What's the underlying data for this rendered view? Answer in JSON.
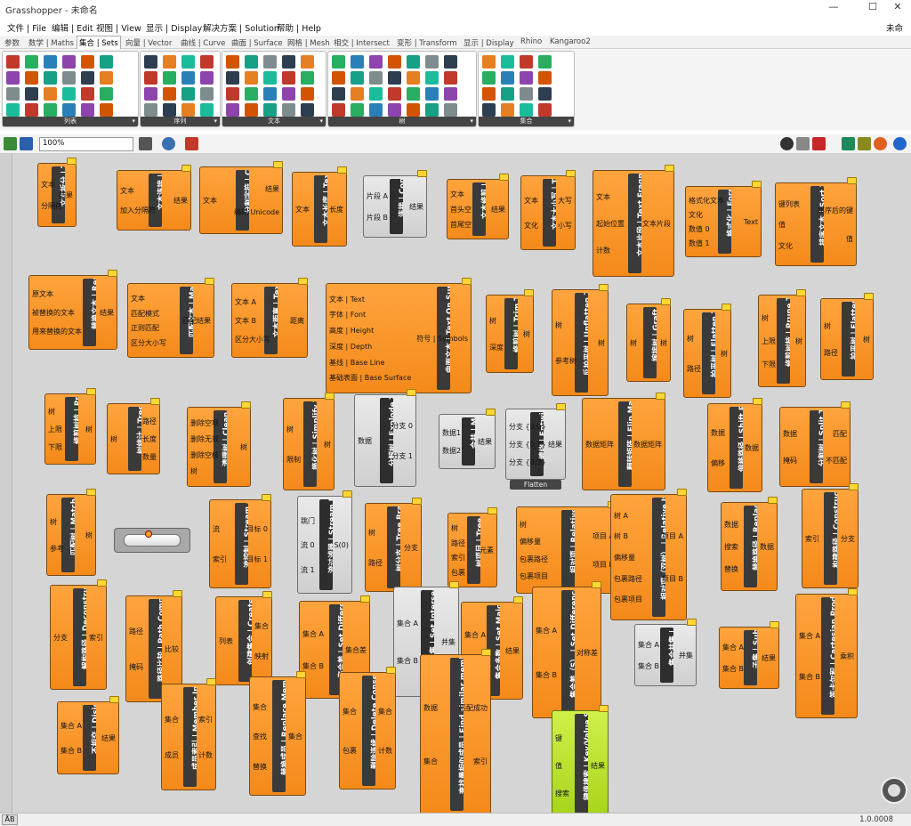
{
  "window": {
    "title": "Grasshopper - 未命名",
    "min": "—",
    "max": "☐",
    "close": "✕",
    "doc_name": "未命名"
  },
  "menu": [
    "文件 | File",
    "编辑 | Edit",
    "视图 | View",
    "显示 | Display",
    "解决方案 | Solution",
    "帮助 | Help"
  ],
  "tabs": [
    "参数",
    "数学 | Maths",
    "集合 | Sets",
    "向量 | Vector",
    "曲线 | Curve",
    "曲面 | Surface",
    "网格 | Mesh",
    "相交 | Intersect",
    "变形 | Transform",
    "显示 | Display",
    "Rhino",
    "Kangaroo2"
  ],
  "active_tab": "集合 | Sets",
  "ribbon_groups": [
    "列表",
    "序列",
    "文本",
    "树",
    "集合"
  ],
  "ribbon_group_expand": "▾",
  "toolbar": {
    "zoom": "100%"
  },
  "components": [
    {
      "name": "文本拆分 | Text Split",
      "in": [
        "文本",
        "分隔符"
      ],
      "out": [
        "结果"
      ]
    },
    {
      "name": "文本连接 | Text Join",
      "in": [
        "文本",
        "加入分隔符"
      ],
      "out": [
        "结果"
      ]
    },
    {
      "name": "分割字符 | Characters",
      "in": [
        "文本"
      ],
      "out": [
        "结果",
        "编码 Unicode"
      ]
    },
    {
      "name": "文本长度 | Text Length",
      "in": [
        "文本"
      ],
      "out": [
        "长度"
      ]
    },
    {
      "name": "连接 | Concatenate",
      "in": [
        "片段 A",
        "片段 B"
      ],
      "out": [
        "结果"
      ]
    },
    {
      "name": "文本修剪 | Text Trim",
      "in": [
        "文本",
        "首头空",
        "首尾空"
      ],
      "out": [
        "结果"
      ]
    },
    {
      "name": "文本大小写 | Text Case",
      "in": [
        "文本",
        "文化"
      ],
      "out": [
        "大写",
        "小写"
      ]
    },
    {
      "name": "文本片段 | Text Fragment",
      "in": [
        "文本",
        "起始位置",
        "计数"
      ],
      "out": [
        "文本片段"
      ]
    },
    {
      "name": "格式化 | Format",
      "in": [
        "格式化文本",
        "文化",
        "数值 0",
        "数值 1"
      ],
      "out": [
        "Text"
      ]
    },
    {
      "name": "排序文本 | Sort Text",
      "in": [
        "键列表",
        "值",
        "文化"
      ],
      "out": [
        "排序后的键",
        "值"
      ]
    },
    {
      "name": "替换文本 | Replace Text",
      "in": [
        "原文本",
        "被替换的文本",
        "用来替换的文本"
      ],
      "out": [
        "结果"
      ]
    },
    {
      "name": "匹配文本 | Match Text",
      "in": [
        "文本",
        "匹配模式",
        "正则匹配",
        "区分大小写"
      ],
      "out": [
        "匹配结果"
      ]
    },
    {
      "name": "文本距离 | Text Distance",
      "in": [
        "文本 A",
        "文本 B",
        "区分大小写"
      ],
      "out": [
        "距离"
      ]
    },
    {
      "name": "曲面文本 | Text On Surface",
      "in": [
        "文本 | Text",
        "字体 | Font",
        "高度 | Height",
        "深度 | Depth",
        "基线 | Base Line",
        "基础表面 | Base Surface"
      ],
      "out": [
        "符号 | Symbols"
      ]
    },
    {
      "name": "修剪树 | Trim Tree",
      "in": [
        "树",
        "深度"
      ],
      "out": [
        "树"
      ]
    },
    {
      "name": "反拍平树 | Unflatten Tree",
      "in": [
        "树",
        "参考树"
      ],
      "out": [
        "树"
      ]
    },
    {
      "name": "嫁接树 | Graft Tree",
      "in": [
        "树"
      ],
      "out": [
        "树"
      ]
    },
    {
      "name": "拍平树 | Flatten Tree",
      "in": [
        "树",
        "路径"
      ],
      "out": [
        "树"
      ]
    },
    {
      "name": "修剪树枝 | Prune Tree",
      "in": [
        "树",
        "上限",
        "下限"
      ],
      "out": [
        "树"
      ]
    },
    {
      "name": "拍平树 | Flatten Tree",
      "in": [
        "树",
        "路径"
      ],
      "out": [
        "树"
      ]
    },
    {
      "name": "修剪树枝 | Prune Tree",
      "in": [
        "树",
        "上限",
        "下限"
      ],
      "out": [
        "树"
      ]
    },
    {
      "name": "树统计 | Tree Statistics",
      "in": [
        "树"
      ],
      "out": [
        "路径",
        "长度",
        "数量"
      ]
    },
    {
      "name": "清理树 | Clean Tree",
      "in": [
        "删除空项",
        "删除无效",
        "删除空枝",
        "树"
      ],
      "out": [
        "树"
      ]
    },
    {
      "name": "简化树 | Simplify Tree",
      "in": [
        "树",
        "限制"
      ],
      "out": [
        "树"
      ]
    },
    {
      "name": "分解树 | Explode Tree",
      "in": [
        "数据"
      ],
      "out": [
        "分支 0",
        "分支 1"
      ]
    },
    {
      "name": "合并 | Merge",
      "in": [
        "数据1",
        "数据2"
      ],
      "out": [
        "结果"
      ]
    },
    {
      "name": "缠绕 | Entwine",
      "in": [
        "分支 {0;0}",
        "分支 {0;1}",
        "分支 {0;2}"
      ],
      "out": [
        "结果"
      ],
      "footer": "Flatten"
    },
    {
      "name": "翻转矩阵 | Flip Matrix",
      "in": [
        "数据矩阵"
      ],
      "out": [
        "数据矩阵"
      ]
    },
    {
      "name": "偏移路径 | Shift Paths",
      "in": [
        "数据",
        "偏移"
      ],
      "out": [
        "数据"
      ]
    },
    {
      "name": "分割树 | Split Tree",
      "in": [
        "数据",
        "掩码"
      ],
      "out": [
        "匹配",
        "不匹配"
      ]
    },
    {
      "name": "匹配树 | Match Tree",
      "in": [
        "树",
        "参考"
      ],
      "out": [
        "树"
      ]
    },
    {
      "name": "流控制 | Stream Gate",
      "in": [
        "流",
        "索引"
      ],
      "out": [
        "目标 0",
        "目标 1"
      ]
    },
    {
      "name": "流过滤器 | Stream Filter",
      "in": [
        "跳门",
        "流 0",
        "流 1"
      ],
      "out": [
        "S(0)"
      ]
    },
    {
      "name": "树分支 | Tree Branch",
      "in": [
        "树",
        "路径"
      ],
      "out": [
        "分支"
      ]
    },
    {
      "name": "树项目 | Tree Item",
      "in": [
        "树",
        "路径",
        "索引",
        "包裹"
      ],
      "out": [
        "元素"
      ]
    },
    {
      "name": "相对项 | Relative Item",
      "in": [
        "树",
        "偏移量",
        "包裹路径",
        "包裹项目"
      ],
      "out": [
        "项目 A",
        "项目 B"
      ]
    },
    {
      "name": "相对项（双树） | Relative Items",
      "in": [
        "树 A",
        "树 B",
        "偏移量",
        "包裹路径",
        "包裹项目"
      ],
      "out": [
        "项目 A",
        "项目 B"
      ]
    },
    {
      "name": "替换路径 | Replace Paths",
      "in": [
        "数据",
        "搜索",
        "替换"
      ],
      "out": [
        "数据"
      ]
    },
    {
      "name": "构建路径 | Construct Path",
      "in": [
        "索引"
      ],
      "out": [
        "分支"
      ]
    },
    {
      "name": "解构路径 | Deconstruct Path",
      "in": [
        "分支"
      ],
      "out": [
        "索引"
      ]
    },
    {
      "name": "路径比较 | Path Compare",
      "in": [
        "路径",
        "掩码"
      ],
      "out": [
        "比较"
      ]
    },
    {
      "name": "创建集合 | Create Set",
      "in": [
        "列表"
      ],
      "out": [
        "集合",
        "映射"
      ]
    },
    {
      "name": "集合差 | Set Difference",
      "in": [
        "集合 A",
        "集合 B"
      ],
      "out": [
        "集合差"
      ]
    },
    {
      "name": "集合交集 | Set Intersection",
      "in": [
        "集合 A",
        "集合 B"
      ],
      "out": [
        "并集"
      ]
    },
    {
      "name": "集合多数 | Set Majority",
      "in": [
        "集合 A",
        "集合 B"
      ],
      "out": [
        "结果"
      ]
    },
    {
      "name": "集合差（S） | Set Difference (S)",
      "in": [
        "集合 A",
        "集合 B"
      ],
      "out": [
        "对称差"
      ]
    },
    {
      "name": "集合并集 | Set Union",
      "in": [
        "集合 A",
        "集合 B"
      ],
      "out": [
        "并集"
      ]
    },
    {
      "name": "子集 | SubSet",
      "in": [
        "集合 A",
        "集合 B"
      ],
      "out": [
        "结果"
      ]
    },
    {
      "name": "笛卡尔积 | Cartesian Product",
      "in": [
        "集合 A",
        "集合 B"
      ],
      "out": [
        "乘积"
      ]
    },
    {
      "name": "不相交 | Disjoint",
      "in": [
        "集合 A",
        "集合 B"
      ],
      "out": [
        "结果"
      ]
    },
    {
      "name": "成员索引 | Member Index",
      "in": [
        "集合",
        "成员"
      ],
      "out": [
        "索引",
        "计数"
      ]
    },
    {
      "name": "替换成员 | Replace Members",
      "in": [
        "集合",
        "查找",
        "替换"
      ],
      "out": [
        "集合"
      ]
    },
    {
      "name": "删除连续 | Delete Consecutive",
      "in": [
        "集合",
        "包裹"
      ],
      "out": [
        "集合",
        "计数"
      ]
    },
    {
      "name": "查找最相似成员 | Find similar member",
      "in": [
        "数据",
        "集合"
      ],
      "out": [
        "匹配成功",
        "索引"
      ]
    },
    {
      "name": "键值搜索 | Key/Value Search",
      "in": [
        "键",
        "值",
        "搜索"
      ],
      "out": [
        "结果"
      ]
    }
  ],
  "status": {
    "version": "1.0.0008",
    "ab": "ÅB"
  }
}
